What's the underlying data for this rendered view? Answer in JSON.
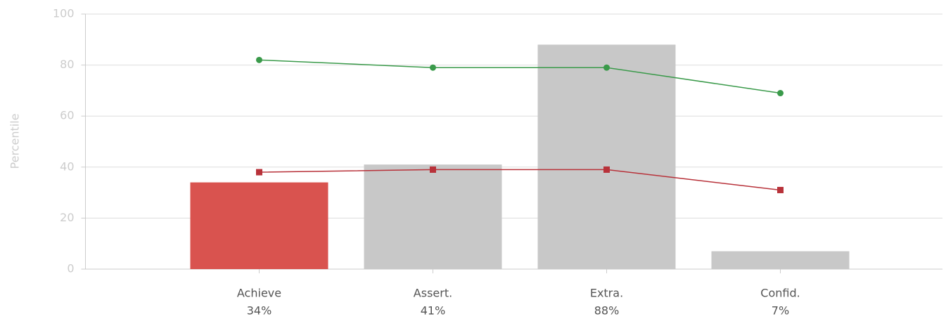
{
  "chart_data": {
    "type": "bar",
    "y_label": "Percentile",
    "categories": [
      "Achieve",
      "Assert.",
      "Extra.",
      "Confid."
    ],
    "values": [
      34,
      41,
      88,
      7
    ],
    "value_labels": [
      "34%",
      "41%",
      "88%",
      "7%"
    ],
    "colors": [
      "#d9534f",
      "#c8c8c8",
      "#c8c8c8",
      "#c8c8c8"
    ],
    "series": [
      {
        "color": "#3a9a4a",
        "marker": "circle",
        "values": [
          82,
          79,
          79,
          69
        ]
      },
      {
        "color": "#b8323a",
        "marker": "square",
        "values": [
          38,
          39,
          39,
          31
        ]
      }
    ],
    "ylim": [
      0,
      100
    ],
    "yticks": [
      0,
      20,
      40,
      60,
      80,
      100
    ],
    "grid": true
  }
}
